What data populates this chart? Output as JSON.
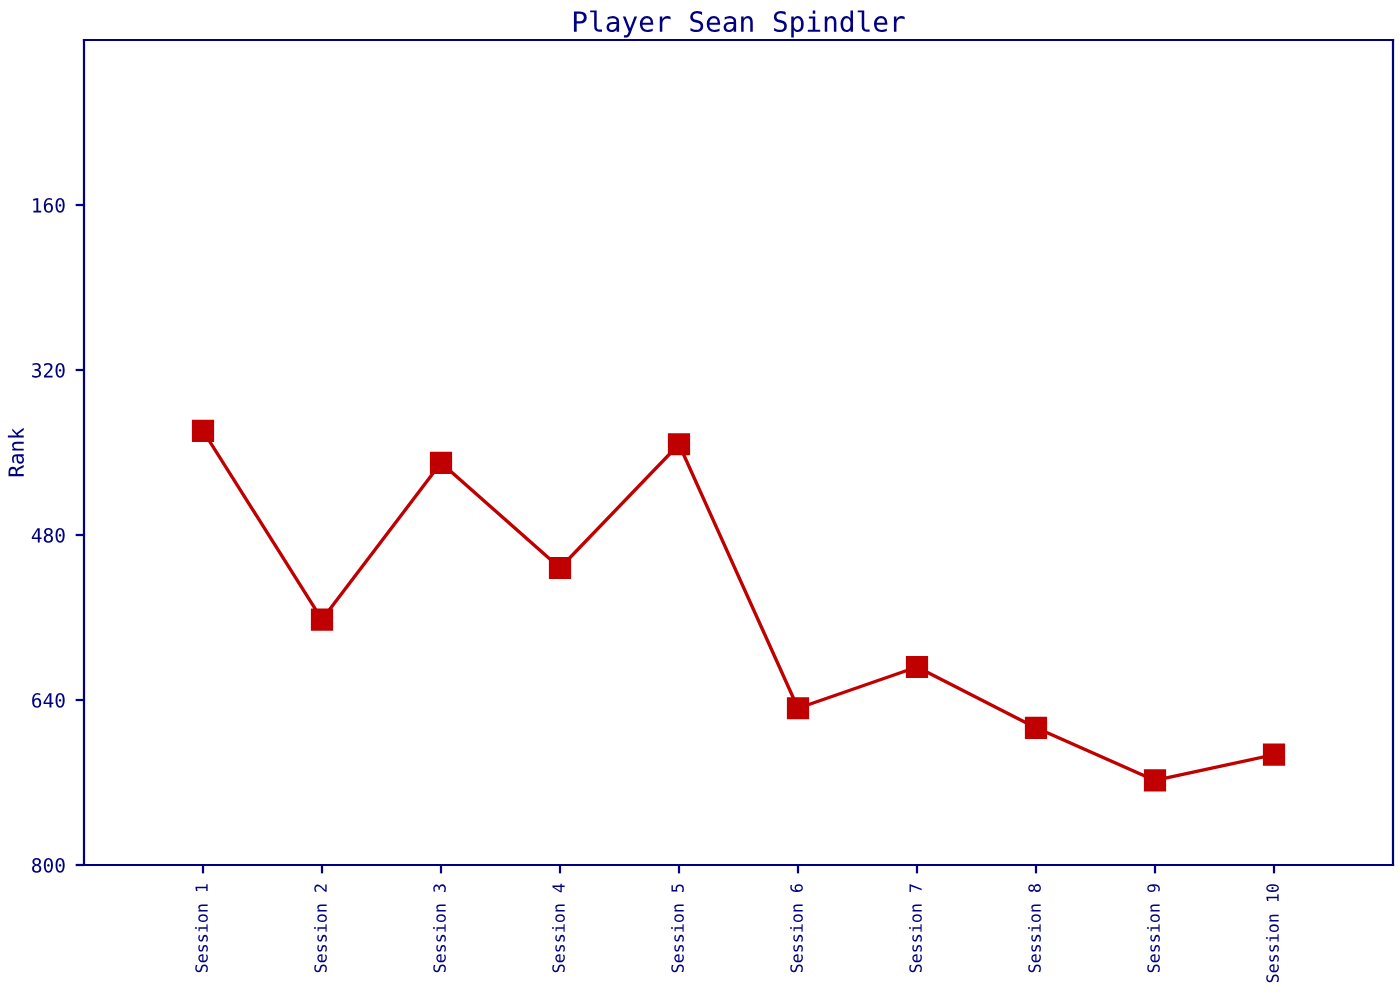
{
  "chart_data": {
    "type": "line",
    "title": "Player Sean Spindler",
    "ylabel": "Rank",
    "categories": [
      "Session 1",
      "Session 2",
      "Session 3",
      "Session 4",
      "Session 5",
      "Session 6",
      "Session 7",
      "Session 8",
      "Session 9",
      "Session 10"
    ],
    "series": [
      {
        "color": "#c00000",
        "values": [
          379,
          562,
          410,
          512,
          392,
          648,
          608,
          667,
          718,
          693
        ]
      }
    ],
    "ylim": [
      800,
      0
    ],
    "yticks": [
      160,
      320,
      480,
      640,
      800
    ],
    "grid": false,
    "marker": "square",
    "line_style": "solid"
  }
}
